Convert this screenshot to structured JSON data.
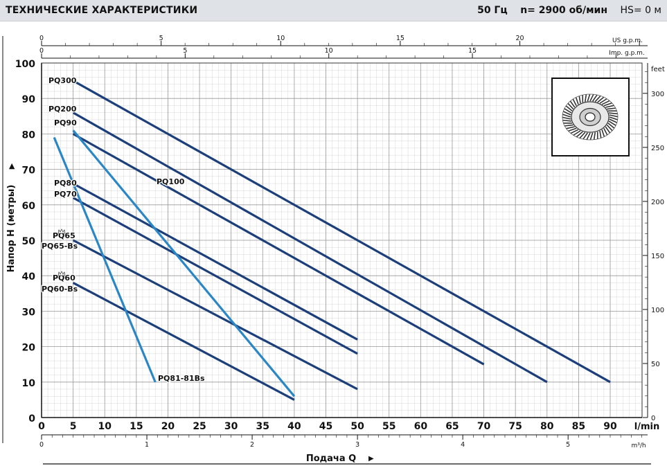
{
  "header": {
    "title": "ТЕХНИЧЕСКИЕ ХАРАКТЕРИСТИКИ",
    "frequency": "50 Гц",
    "speed": "n= 2900  об/мин",
    "hs": "HS= 0 м"
  },
  "chart_data": {
    "type": "line",
    "xlabel": "Подача Q",
    "ylabel": "Напор H  (метры)",
    "x_unit": "l/min",
    "xlim": [
      0,
      90
    ],
    "ylim": [
      0,
      100
    ],
    "x_ticks": [
      0,
      5,
      10,
      15,
      20,
      25,
      30,
      35,
      40,
      45,
      50,
      55,
      60,
      65,
      70,
      75,
      80,
      85,
      90
    ],
    "y_ticks": [
      0,
      10,
      20,
      30,
      40,
      50,
      60,
      70,
      80,
      90,
      100
    ],
    "grid": true,
    "secondary_axes": {
      "us_gpm": {
        "label": "US g.p.m.",
        "ticks": [
          0,
          5,
          10,
          15,
          20
        ],
        "factor": 3.785
      },
      "imp_gpm": {
        "label": "Imp. g.p.m.",
        "ticks": [
          0,
          5,
          10,
          15
        ],
        "factor": 4.546
      },
      "m3h": {
        "label": "m³/h",
        "ticks": [
          0,
          1,
          2,
          3,
          4,
          5
        ],
        "factor": 16.667
      },
      "feet": {
        "label": "feet",
        "ticks": [
          0,
          50,
          100,
          150,
          200,
          250,
          300
        ],
        "factor": 0.3048
      }
    },
    "series": [
      {
        "name": "PQ300",
        "points": [
          [
            5,
            95
          ],
          [
            90,
            10
          ]
        ],
        "color": "#1c3f7a"
      },
      {
        "name": "PQ200",
        "points": [
          [
            5,
            86
          ],
          [
            80,
            10
          ]
        ],
        "color": "#1c3f7a"
      },
      {
        "name": "PQ100",
        "points": [
          [
            5,
            80
          ],
          [
            70,
            15
          ]
        ],
        "color": "#1c3f7a"
      },
      {
        "name": "PQ80",
        "points": [
          [
            5,
            66
          ],
          [
            50,
            22
          ]
        ],
        "color": "#1c3f7a"
      },
      {
        "name": "PQ70",
        "points": [
          [
            5,
            62
          ],
          [
            50,
            18
          ]
        ],
        "color": "#1c3f7a"
      },
      {
        "name": "PQ65",
        "points": [
          [
            5,
            50
          ],
          [
            50,
            8
          ]
        ],
        "color": "#1c3f7a"
      },
      {
        "name": "PQ60",
        "points": [
          [
            5,
            38
          ],
          [
            40,
            5
          ]
        ],
        "color": "#1c3f7a"
      },
      {
        "name": "PQ90",
        "points": [
          [
            5,
            81
          ],
          [
            40,
            6
          ]
        ],
        "color": "#2b86c5"
      },
      {
        "name": "PQ81-81Bs",
        "points": [
          [
            2,
            79
          ],
          [
            18,
            10
          ]
        ],
        "color": "#2b86c5"
      }
    ],
    "curve_labels": [
      {
        "text": "PQ300",
        "series": "PQ300"
      },
      {
        "text": "PQ200",
        "series": "PQ200"
      },
      {
        "text": "PQ90",
        "series": "PQ90"
      },
      {
        "text": "PQ100",
        "series": "PQ100"
      },
      {
        "text": "PQ80",
        "series": "PQ80"
      },
      {
        "text": "PQ70",
        "series": "PQ70"
      },
      {
        "text": "PQ65",
        "series": "PQ65"
      },
      {
        "text": "PQ65-Bs",
        "series": "PQ65"
      },
      {
        "text": "PQ60",
        "series": "PQ60"
      },
      {
        "text": "PQ60-Bs",
        "series": "PQ60"
      },
      {
        "text": "PQ81-81Bs",
        "series": "PQ81-81Bs"
      }
    ],
    "icons": [
      "impeller-illustration",
      "crown-icon"
    ]
  }
}
